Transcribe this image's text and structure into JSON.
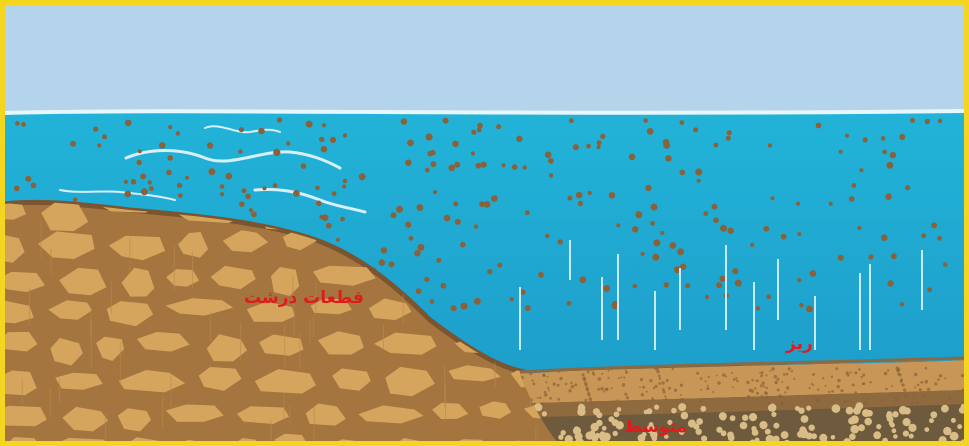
{
  "labels": {
    "coarse": "قطعات درشت",
    "fine": "ریز",
    "medium": "متوسط"
  },
  "colors": {
    "frame": "#f4d51f",
    "sky": "#b3d4ea",
    "water_top": "#22b3d8",
    "water_bottom": "#1c99c7",
    "rock_fill": "#d5a55d",
    "rock_joint": "#a4753f",
    "sediment_fine": "#c89656",
    "sediment_medium": "#8f6a3f",
    "sediment_coarse": "#6e5a3d",
    "particle": "#8a6138",
    "wave": "#d8f0fb",
    "label": "#e01b1b"
  }
}
